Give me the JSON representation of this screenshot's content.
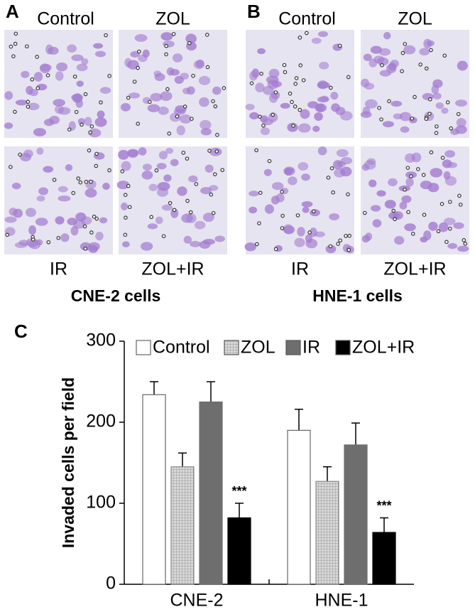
{
  "panels": [
    {
      "label": "A",
      "top": [
        "Control",
        "ZOL"
      ],
      "bottom": [
        "IR",
        "ZOL+IR"
      ],
      "caption": "CNE-2 cells"
    },
    {
      "label": "B",
      "top": [
        "Control",
        "ZOL"
      ],
      "bottom": [
        "IR",
        "ZOL+IR"
      ],
      "caption": "HNE-1 cells"
    }
  ],
  "chart_data": {
    "type": "bar",
    "panel_label": "C",
    "y_label": "Invaded cells per field",
    "categories": [
      "CNE-2",
      "HNE-1"
    ],
    "series": [
      {
        "name": "Control",
        "color": "#ffffff",
        "values": [
          234,
          190
        ],
        "errors": [
          16,
          26
        ]
      },
      {
        "name": "ZOL",
        "color": "#c8c8c8",
        "pattern": "grid",
        "values": [
          145,
          127
        ],
        "errors": [
          17,
          18
        ]
      },
      {
        "name": "IR",
        "color": "#6e6e6e",
        "values": [
          225,
          172
        ],
        "errors": [
          25,
          27
        ]
      },
      {
        "name": "ZOL+IR",
        "color": "#000000",
        "values": [
          82,
          64
        ],
        "errors": [
          18,
          18
        ],
        "annotations": [
          "***",
          "***"
        ]
      }
    ],
    "ylim": [
      0,
      300
    ],
    "yticks": [
      0,
      100,
      200,
      300
    ],
    "legend": "top"
  }
}
